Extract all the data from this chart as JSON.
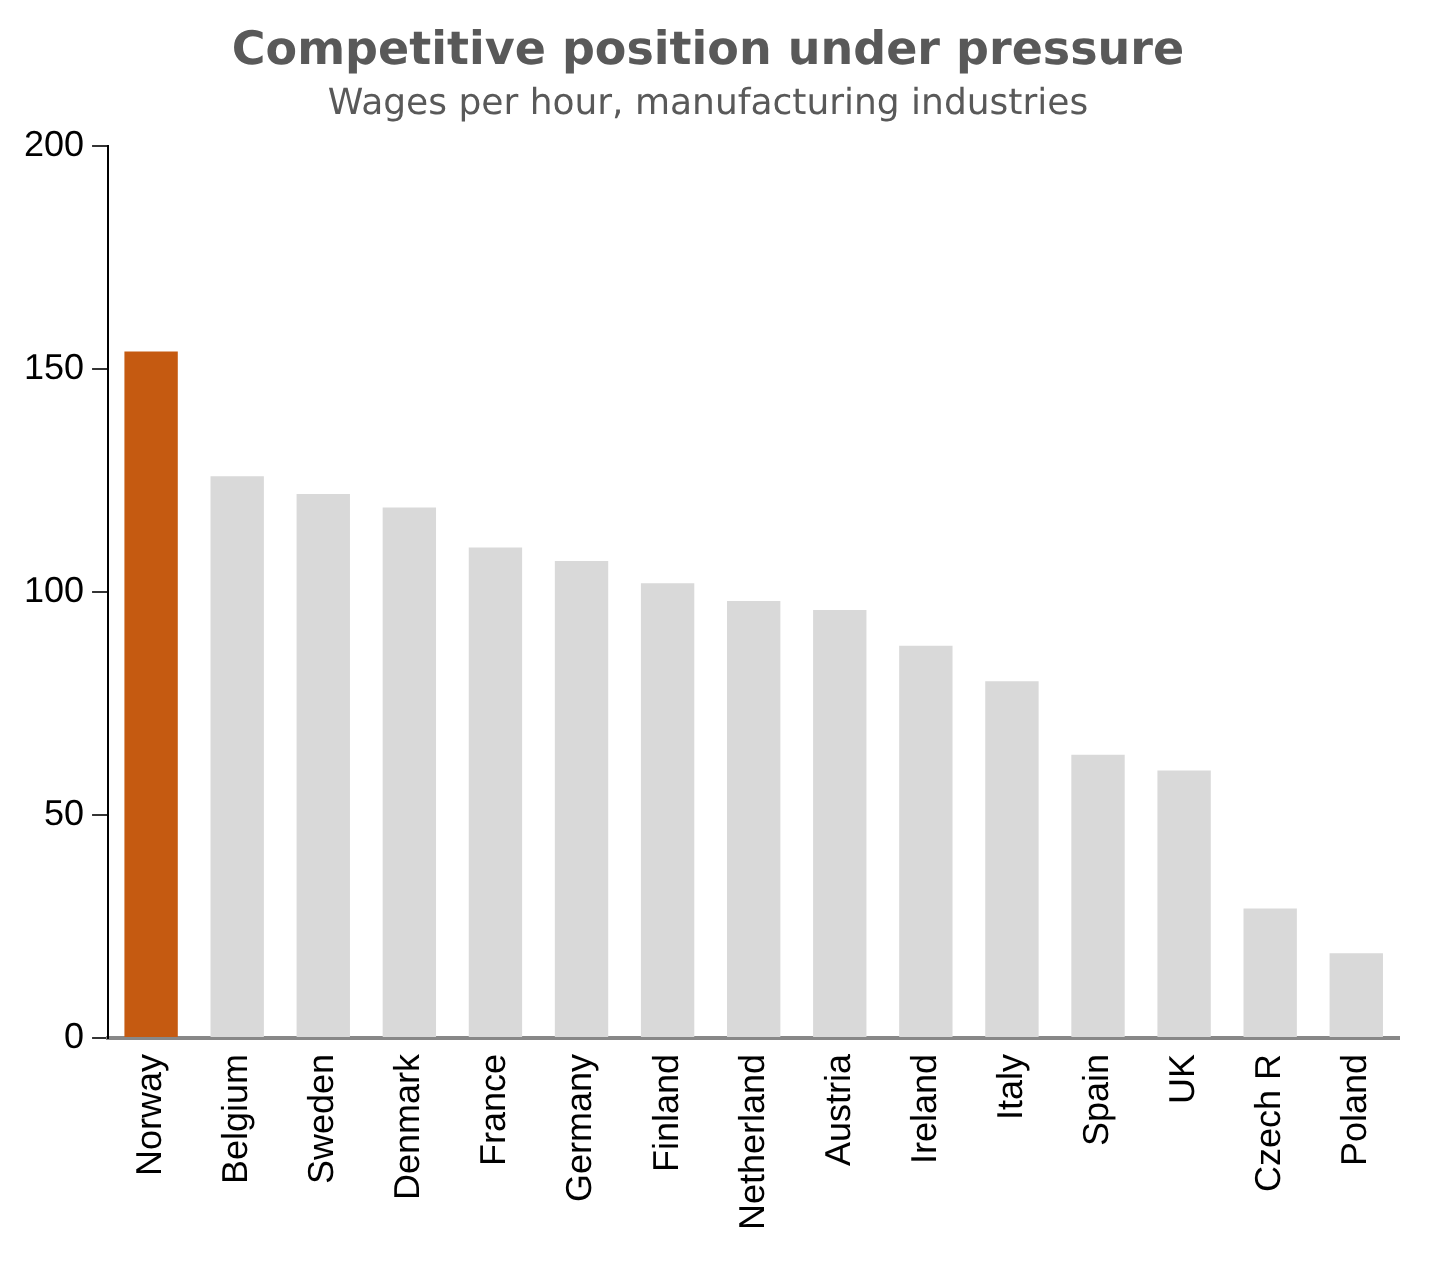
{
  "chart_data": {
    "type": "bar",
    "title": "Competitive position under pressure",
    "subtitle": "Wages per hour, manufacturing industries",
    "categories": [
      "Norway",
      "Belgium",
      "Sweden",
      "Denmark",
      "France",
      "Germany",
      "Finland",
      "Netherland",
      "Austria",
      "Ireland",
      "Italy",
      "Spain",
      "UK",
      "Czech R",
      "Poland"
    ],
    "values": [
      154,
      126,
      122,
      119,
      110,
      107,
      102,
      98,
      96,
      88,
      80,
      63.5,
      60,
      29,
      19
    ],
    "colors": [
      "#c55a11",
      "#d9d9d9",
      "#d9d9d9",
      "#d9d9d9",
      "#d9d9d9",
      "#d9d9d9",
      "#d9d9d9",
      "#d9d9d9",
      "#d9d9d9",
      "#d9d9d9",
      "#d9d9d9",
      "#d9d9d9",
      "#d9d9d9",
      "#d9d9d9",
      "#d9d9d9"
    ],
    "ylim": [
      0,
      200
    ],
    "yticks": [
      0,
      50,
      100,
      150,
      200
    ],
    "grid": false,
    "legend": false
  }
}
